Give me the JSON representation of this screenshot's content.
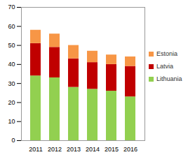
{
  "chart_data": {
    "type": "bar",
    "stacked": true,
    "categories": [
      "2011",
      "2012",
      "2013",
      "2014",
      "2015",
      "2016"
    ],
    "series": [
      {
        "name": "Lithuania",
        "color": "#92d050",
        "values": [
          34,
          33,
          28,
          27,
          26,
          23
        ]
      },
      {
        "name": "Latvia",
        "color": "#c00000",
        "values": [
          17,
          16,
          15,
          14,
          14,
          16
        ]
      },
      {
        "name": "Estonia",
        "color": "#f79646",
        "values": [
          7,
          7,
          7,
          6,
          5,
          5
        ]
      }
    ],
    "ylim": [
      0,
      70
    ],
    "yticks": [
      0,
      10,
      20,
      30,
      40,
      50,
      60,
      70
    ],
    "grid": false,
    "legend": "right"
  }
}
